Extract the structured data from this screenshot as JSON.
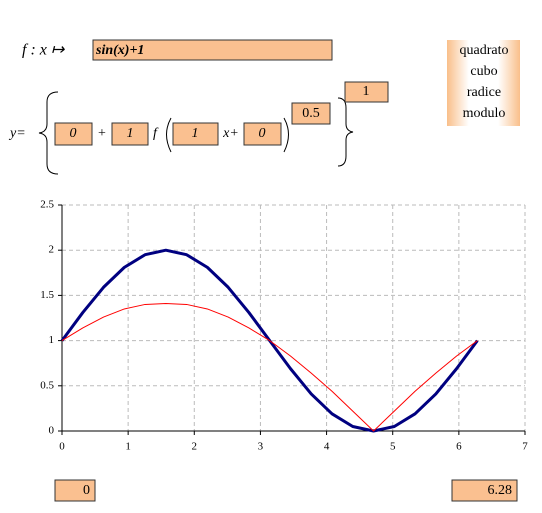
{
  "ui": {
    "function_label": "f : x ↦",
    "function_input": "sin(x)+1",
    "menu": [
      "quadrato",
      "cubo",
      "radice",
      "modulo"
    ],
    "equation": {
      "y_label": "y=",
      "a": "0",
      "plus": "+",
      "b": "1",
      "f": "f",
      "c": "1",
      "x_plus": "x+",
      "d": "0",
      "exponent": "0.5",
      "outer": "1"
    },
    "range_min": "0",
    "range_max": "6.28"
  },
  "chart_data": {
    "type": "line",
    "x": [
      0,
      0.314,
      0.628,
      0.942,
      1.256,
      1.57,
      1.884,
      2.198,
      2.512,
      2.826,
      3.14,
      3.454,
      3.768,
      4.082,
      4.396,
      4.71,
      5.024,
      5.338,
      5.652,
      5.966,
      6.28
    ],
    "series": [
      {
        "color": "#000080",
        "values": [
          1,
          1.31,
          1.59,
          1.81,
          1.95,
          2,
          1.95,
          1.81,
          1.59,
          1.31,
          1,
          0.69,
          0.41,
          0.19,
          0.05,
          0,
          0.05,
          0.19,
          0.41,
          0.69,
          1
        ]
      },
      {
        "color": "#ff0000",
        "values": [
          1,
          1.14,
          1.26,
          1.35,
          1.4,
          1.41,
          1.4,
          1.35,
          1.26,
          1.14,
          1,
          0.83,
          0.64,
          0.44,
          0.22,
          0,
          0.22,
          0.44,
          0.64,
          0.83,
          1
        ]
      }
    ],
    "xlim": [
      0,
      7
    ],
    "xticks": [
      0,
      1,
      2,
      3,
      4,
      5,
      6,
      7
    ],
    "ylim": [
      0,
      2.5
    ],
    "yticks": [
      0,
      0.5,
      1,
      1.5,
      2,
      2.5
    ],
    "grid": true
  }
}
